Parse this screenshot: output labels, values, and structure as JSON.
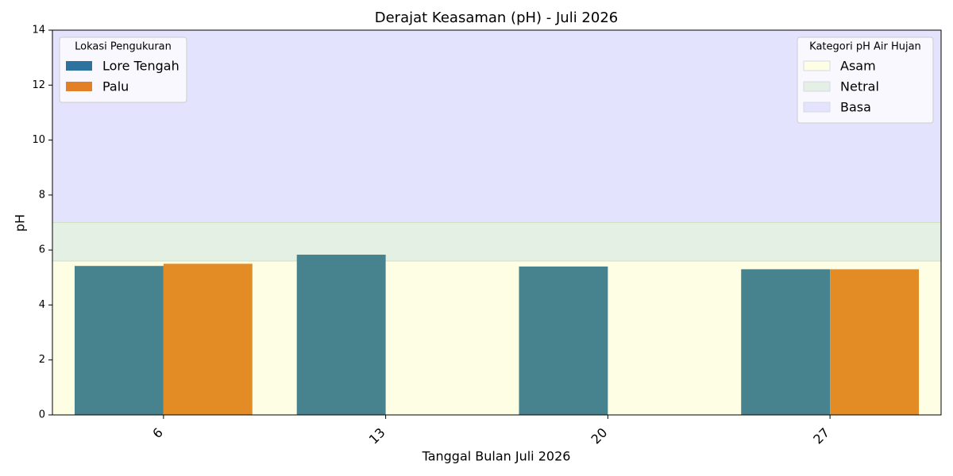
{
  "chart_data": {
    "type": "bar",
    "title": "Derajat Keasaman (pH) - Juli 2026",
    "xlabel": "Tanggal Bulan Juli 2026",
    "ylabel": "pH",
    "categories": [
      "6",
      "13",
      "20",
      "27"
    ],
    "series": [
      {
        "name": "Lore Tengah",
        "color": "#47838f",
        "legend_color": "#2e72a0",
        "values": [
          5.42,
          5.83,
          5.4,
          5.3
        ]
      },
      {
        "name": "Palu",
        "color": "#e38b25",
        "legend_color": "#e37f25",
        "values": [
          5.5,
          null,
          null,
          5.3
        ]
      }
    ],
    "legend_title": "Lokasi Pengukuran",
    "legend_loc": "upper left",
    "bands": [
      {
        "name": "Asam",
        "color": "#fefee4",
        "range": [
          0,
          5.6
        ]
      },
      {
        "name": "Netral",
        "color": "#e3f0e3",
        "range": [
          5.6,
          7
        ]
      },
      {
        "name": "Basa",
        "color": "#e3e3fe",
        "range": [
          7,
          14
        ]
      }
    ],
    "bands_legend_title": "Kategori pH Air Hujan",
    "bands_legend_loc": "upper right",
    "ylim": [
      0,
      14
    ],
    "yticks": [
      0,
      2,
      4,
      6,
      8,
      10,
      12,
      14
    ]
  }
}
